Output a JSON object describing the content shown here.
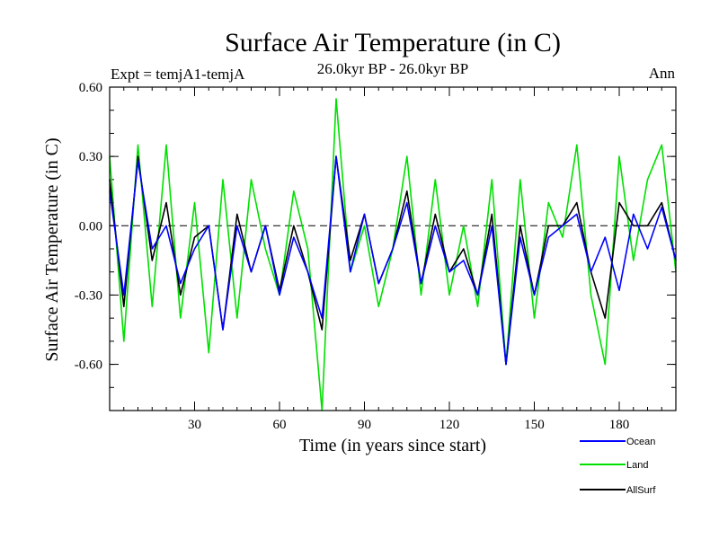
{
  "chart_data": {
    "type": "line",
    "title": "Surface Air Temperature (in C)",
    "subtitle": "26.0kyr BP - 26.0kyr BP",
    "left_label": "Expt = temjA1-temjA",
    "right_label": "Ann",
    "xlabel": "Time (in years since start)",
    "ylabel": "Surface Air Temperature (in C)",
    "xlim": [
      0,
      200
    ],
    "ylim": [
      -0.8,
      0.6
    ],
    "xticks": [
      30,
      60,
      90,
      120,
      150,
      180
    ],
    "xtick_labels": [
      "30",
      "60",
      "90",
      "120",
      "150",
      "180"
    ],
    "yticks": [
      -0.6,
      -0.3,
      0.0,
      0.3,
      0.6
    ],
    "ytick_labels": [
      "-0.60",
      "-0.30",
      "0.00",
      "0.30",
      "0.60"
    ],
    "reference_line": 0.0,
    "legend_position": "bottom-right, outside plot",
    "x": [
      0,
      5,
      10,
      15,
      20,
      25,
      30,
      35,
      40,
      45,
      50,
      55,
      60,
      65,
      70,
      75,
      80,
      85,
      90,
      95,
      100,
      105,
      110,
      115,
      120,
      125,
      130,
      135,
      140,
      145,
      150,
      155,
      160,
      165,
      170,
      175,
      180,
      185,
      190,
      195,
      200
    ],
    "series": [
      {
        "name": "Ocean",
        "color": "#0000ff",
        "values": [
          0.15,
          -0.3,
          0.28,
          -0.1,
          0.0,
          -0.25,
          -0.1,
          0.0,
          -0.45,
          0.0,
          -0.2,
          0.0,
          -0.3,
          -0.05,
          -0.2,
          -0.4,
          0.3,
          -0.2,
          0.05,
          -0.25,
          -0.1,
          0.1,
          -0.25,
          0.0,
          -0.2,
          -0.15,
          -0.3,
          0.0,
          -0.6,
          -0.05,
          -0.3,
          -0.05,
          0.0,
          0.05,
          -0.2,
          -0.05,
          -0.28,
          0.05,
          -0.1,
          0.08,
          -0.15
        ]
      },
      {
        "name": "Land",
        "color": "#00e000",
        "values": [
          0.3,
          -0.5,
          0.35,
          -0.35,
          0.35,
          -0.4,
          0.1,
          -0.55,
          0.2,
          -0.4,
          0.2,
          -0.1,
          -0.3,
          0.15,
          -0.1,
          -0.8,
          0.55,
          -0.2,
          0.0,
          -0.35,
          -0.1,
          0.3,
          -0.3,
          0.2,
          -0.3,
          0.0,
          -0.35,
          0.2,
          -0.6,
          0.2,
          -0.4,
          0.1,
          -0.05,
          0.35,
          -0.3,
          -0.6,
          0.3,
          -0.15,
          0.2,
          0.35,
          -0.2
        ]
      },
      {
        "name": "AllSurf",
        "color": "#000000",
        "values": [
          0.2,
          -0.35,
          0.3,
          -0.15,
          0.1,
          -0.3,
          -0.05,
          0.0,
          -0.45,
          0.05,
          -0.2,
          0.0,
          -0.28,
          0.0,
          -0.2,
          -0.45,
          0.3,
          -0.15,
          0.05,
          -0.25,
          -0.1,
          0.15,
          -0.25,
          0.05,
          -0.2,
          -0.1,
          -0.3,
          0.05,
          -0.6,
          0.0,
          -0.3,
          0.0,
          0.0,
          0.1,
          -0.2,
          -0.4,
          0.1,
          0.0,
          0.0,
          0.1,
          -0.15
        ]
      }
    ]
  }
}
